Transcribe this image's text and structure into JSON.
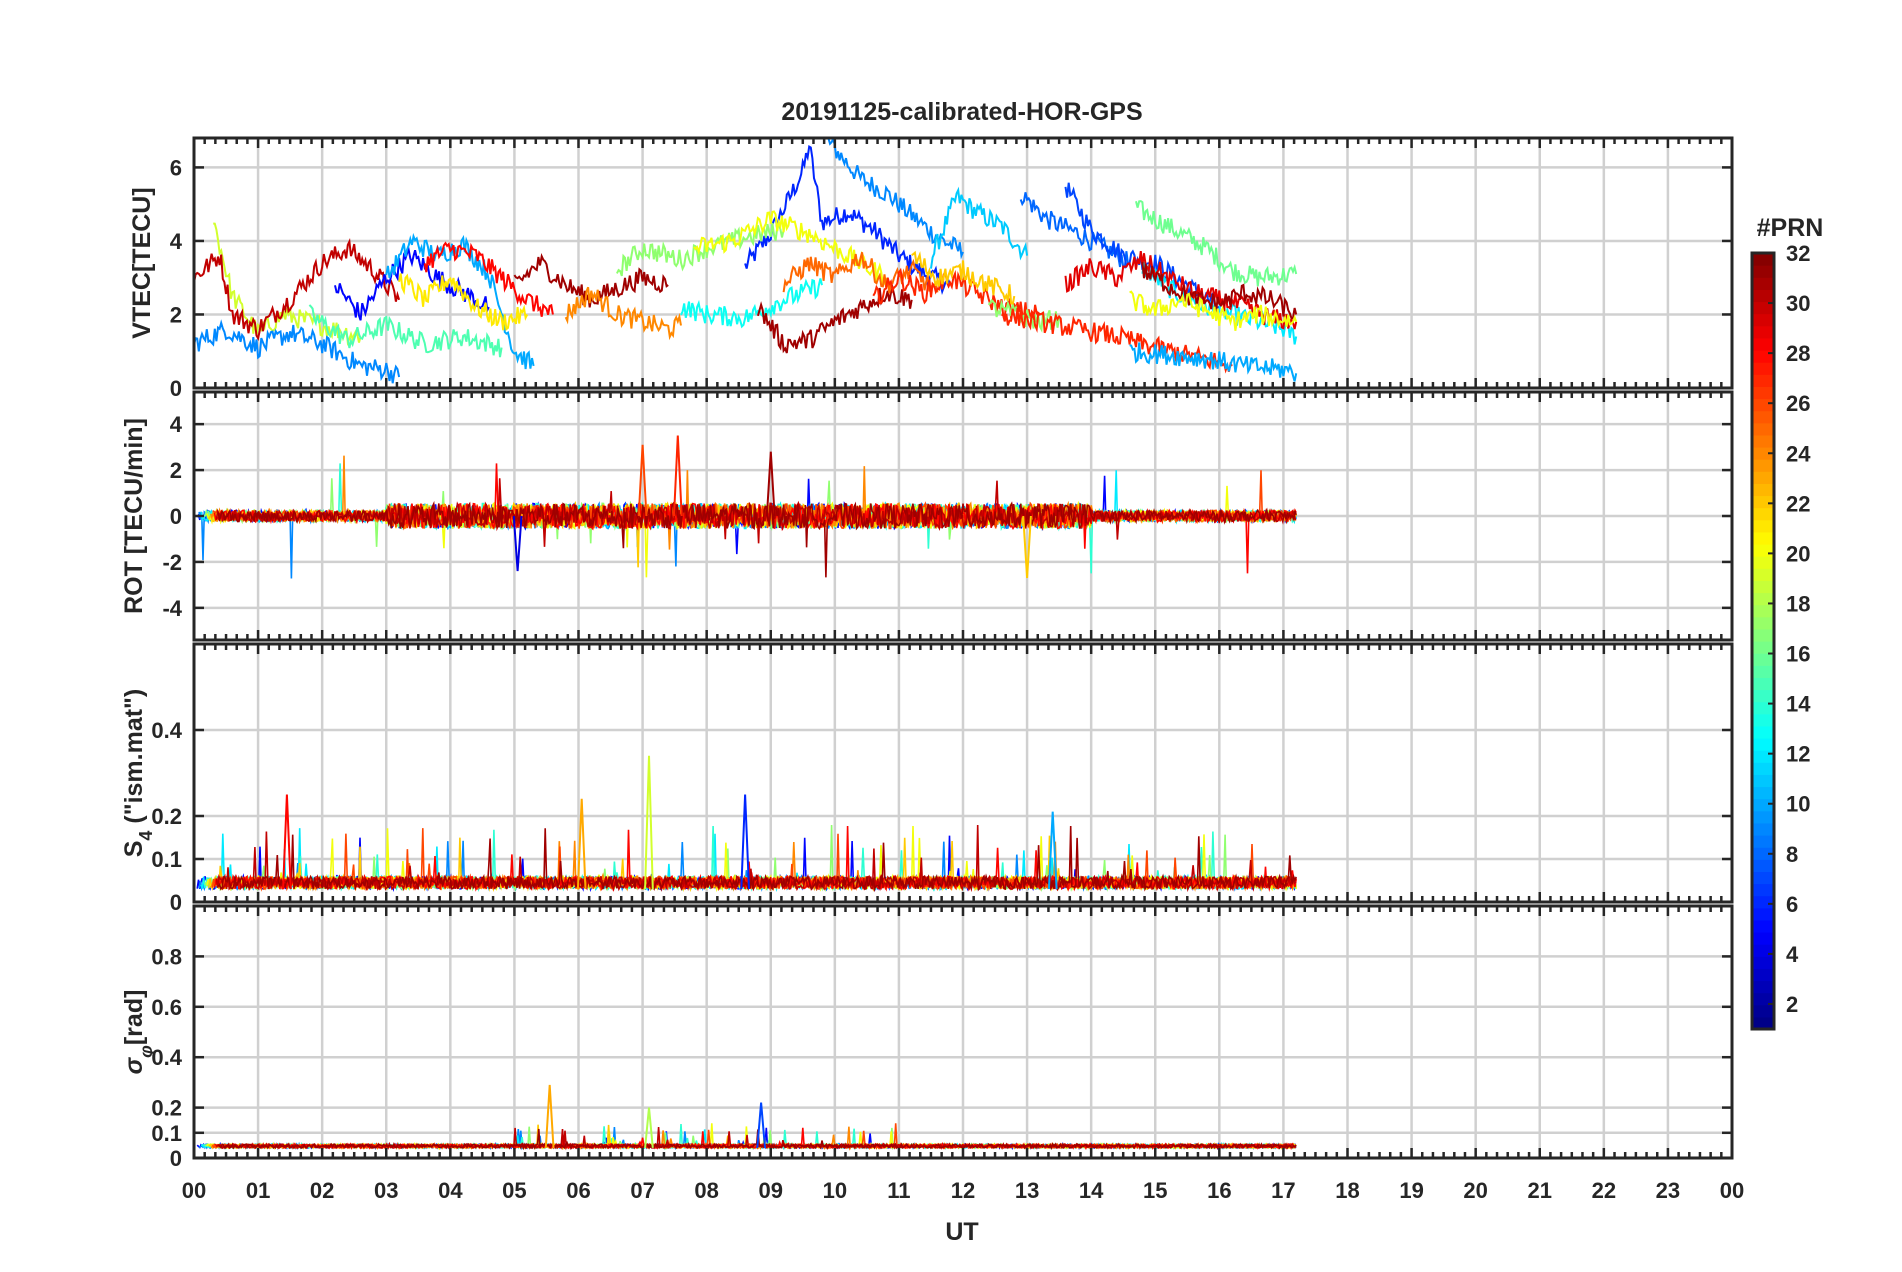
{
  "figure": {
    "title": "20191125-calibrated-HOR-GPS",
    "xlabel": "UT",
    "x_tick_labels": [
      "00",
      "01",
      "02",
      "03",
      "04",
      "05",
      "06",
      "07",
      "08",
      "09",
      "10",
      "11",
      "12",
      "13",
      "14",
      "15",
      "16",
      "17",
      "18",
      "19",
      "20",
      "21",
      "22",
      "23",
      "00"
    ]
  },
  "chart_data": [
    {
      "type": "line",
      "panel": "vtec",
      "ylabel": "VTEC[TECU]",
      "ylim": [
        0,
        6.8
      ],
      "yticks": [
        0,
        2,
        4,
        6
      ],
      "ytick_labels": [
        "0",
        "2",
        "4",
        "6"
      ],
      "xlim": [
        0,
        24
      ],
      "grid": true,
      "series": [
        {
          "prn": 6,
          "values": [
            [
              8.6,
              3.3
            ],
            [
              9.0,
              4.2
            ],
            [
              9.3,
              5.2
            ],
            [
              9.5,
              5.9
            ],
            [
              9.6,
              6.6
            ],
            [
              9.8,
              4.5
            ],
            [
              10.2,
              4.8
            ],
            [
              10.6,
              4.3
            ],
            [
              11.0,
              3.6
            ],
            [
              11.4,
              3.1
            ],
            [
              11.8,
              2.8
            ]
          ]
        },
        {
          "prn": 9,
          "values": [
            [
              9.9,
              6.7
            ],
            [
              10.4,
              5.7
            ],
            [
              10.8,
              5.3
            ],
            [
              11.2,
              4.7
            ],
            [
              11.6,
              4.1
            ],
            [
              12.0,
              3.7
            ]
          ]
        },
        {
          "prn": 11,
          "values": [
            [
              11.5,
              3.5
            ],
            [
              11.9,
              5.2
            ],
            [
              12.2,
              4.8
            ],
            [
              12.6,
              4.4
            ],
            [
              13.0,
              3.6
            ]
          ]
        },
        {
          "prn": 8,
          "values": [
            [
              12.9,
              5.3
            ],
            [
              13.3,
              4.6
            ],
            [
              13.8,
              4.2
            ],
            [
              14.2,
              3.8
            ],
            [
              14.6,
              3.4
            ]
          ]
        },
        {
          "prn": 7,
          "values": [
            [
              13.6,
              5.5
            ],
            [
              14.0,
              4.3
            ],
            [
              14.5,
              3.6
            ],
            [
              15.0,
              3.4
            ],
            [
              15.4,
              2.9
            ],
            [
              16.0,
              2.2
            ]
          ]
        },
        {
          "prn": 16,
          "values": [
            [
              14.7,
              4.9
            ],
            [
              15.0,
              4.6
            ],
            [
              15.4,
              4.2
            ],
            [
              15.8,
              3.8
            ],
            [
              16.2,
              3.2
            ],
            [
              16.6,
              3.0
            ],
            [
              17.2,
              3.1
            ]
          ]
        },
        {
          "prn": 12,
          "values": [
            [
              14.8,
              3.3
            ],
            [
              15.3,
              2.6
            ],
            [
              15.8,
              2.2
            ],
            [
              16.4,
              1.9
            ],
            [
              17.0,
              1.6
            ],
            [
              17.2,
              1.4
            ]
          ]
        },
        {
          "prn": 19,
          "values": [
            [
              0.3,
              4.6
            ],
            [
              0.6,
              2.5
            ],
            [
              1.0,
              1.5
            ],
            [
              1.4,
              2.0
            ],
            [
              2.0,
              1.7
            ],
            [
              2.6,
              1.4
            ]
          ]
        },
        {
          "prn": 30,
          "values": [
            [
              0.0,
              3.0
            ],
            [
              0.4,
              3.6
            ],
            [
              0.6,
              2.0
            ],
            [
              1.0,
              1.6
            ],
            [
              1.5,
              2.4
            ],
            [
              2.0,
              3.4
            ],
            [
              2.4,
              3.8
            ],
            [
              2.8,
              3.2
            ],
            [
              3.2,
              2.4
            ]
          ]
        },
        {
          "prn": 9,
          "values": [
            [
              0.0,
              1.2
            ],
            [
              0.5,
              1.6
            ],
            [
              1.0,
              1.1
            ],
            [
              1.5,
              1.5
            ],
            [
              2.0,
              1.2
            ],
            [
              2.6,
              0.6
            ],
            [
              3.0,
              0.5
            ],
            [
              3.2,
              0.3
            ]
          ]
        },
        {
          "prn": 5,
          "values": [
            [
              2.2,
              2.8
            ],
            [
              2.6,
              2.0
            ],
            [
              3.0,
              3.0
            ],
            [
              3.4,
              3.6
            ],
            [
              3.8,
              3.0
            ],
            [
              4.2,
              2.6
            ],
            [
              4.6,
              2.2
            ]
          ]
        },
        {
          "prn": 15,
          "values": [
            [
              1.8,
              2.0
            ],
            [
              2.4,
              1.3
            ],
            [
              3.0,
              1.7
            ],
            [
              3.6,
              1.2
            ],
            [
              4.2,
              1.4
            ],
            [
              4.8,
              1.1
            ]
          ]
        },
        {
          "prn": 10,
          "values": [
            [
              3.0,
              3.0
            ],
            [
              3.4,
              4.0
            ],
            [
              3.8,
              3.6
            ],
            [
              4.2,
              3.9
            ],
            [
              4.6,
              3.1
            ],
            [
              5.0,
              1.0
            ],
            [
              5.3,
              0.6
            ]
          ]
        },
        {
          "prn": 21,
          "values": [
            [
              3.2,
              3.0
            ],
            [
              3.6,
              2.4
            ],
            [
              4.0,
              3.0
            ],
            [
              4.4,
              2.2
            ],
            [
              4.8,
              1.8
            ],
            [
              5.2,
              2.0
            ]
          ]
        },
        {
          "prn": 28,
          "values": [
            [
              3.6,
              3.4
            ],
            [
              4.0,
              3.8
            ],
            [
              4.4,
              3.6
            ],
            [
              4.8,
              3.0
            ],
            [
              5.2,
              2.4
            ],
            [
              5.6,
              2.0
            ]
          ]
        },
        {
          "prn": 31,
          "values": [
            [
              5.0,
              2.8
            ],
            [
              5.4,
              3.4
            ],
            [
              5.8,
              2.8
            ],
            [
              6.2,
              2.4
            ],
            [
              6.6,
              2.7
            ],
            [
              7.0,
              3.0
            ],
            [
              7.4,
              2.8
            ]
          ]
        },
        {
          "prn": 24,
          "values": [
            [
              5.8,
              2.0
            ],
            [
              6.2,
              2.6
            ],
            [
              6.6,
              2.0
            ],
            [
              7.0,
              1.8
            ],
            [
              7.4,
              1.6
            ],
            [
              7.6,
              1.7
            ]
          ]
        },
        {
          "prn": 17,
          "values": [
            [
              6.6,
              3.2
            ],
            [
              7.0,
              3.8
            ],
            [
              7.6,
              3.5
            ],
            [
              8.0,
              3.8
            ],
            [
              8.6,
              4.1
            ],
            [
              9.2,
              4.3
            ]
          ]
        },
        {
          "prn": 13,
          "values": [
            [
              7.6,
              2.2
            ],
            [
              8.0,
              2.0
            ],
            [
              8.6,
              1.9
            ],
            [
              9.2,
              2.4
            ],
            [
              9.8,
              2.8
            ]
          ]
        },
        {
          "prn": 20,
          "values": [
            [
              7.8,
              3.8
            ],
            [
              8.4,
              4.0
            ],
            [
              9.0,
              4.6
            ],
            [
              9.6,
              4.2
            ],
            [
              10.2,
              3.6
            ],
            [
              10.8,
              3.0
            ]
          ]
        },
        {
          "prn": 31,
          "values": [
            [
              8.8,
              2.2
            ],
            [
              9.2,
              1.2
            ],
            [
              9.6,
              1.3
            ],
            [
              10.0,
              1.8
            ],
            [
              10.4,
              2.2
            ],
            [
              10.8,
              2.6
            ],
            [
              11.2,
              2.4
            ]
          ]
        },
        {
          "prn": 25,
          "values": [
            [
              9.2,
              2.8
            ],
            [
              9.6,
              3.4
            ],
            [
              10.0,
              3.0
            ],
            [
              10.4,
              3.6
            ],
            [
              10.8,
              2.8
            ],
            [
              11.2,
              3.2
            ],
            [
              11.6,
              2.6
            ]
          ]
        },
        {
          "prn": 27,
          "values": [
            [
              10.6,
              2.4
            ],
            [
              11.0,
              3.0
            ],
            [
              11.4,
              2.6
            ],
            [
              11.8,
              3.0
            ],
            [
              12.2,
              2.6
            ],
            [
              12.6,
              2.2
            ],
            [
              13.2,
              2.0
            ]
          ]
        },
        {
          "prn": 22,
          "values": [
            [
              11.2,
              3.6
            ],
            [
              11.6,
              3.0
            ],
            [
              12.0,
              3.2
            ],
            [
              12.4,
              2.8
            ],
            [
              12.8,
              2.5
            ]
          ]
        },
        {
          "prn": 17,
          "values": [
            [
              12.4,
              2.2
            ],
            [
              12.8,
              2.0
            ],
            [
              13.2,
              1.8
            ],
            [
              13.5,
              1.9
            ]
          ]
        },
        {
          "prn": 29,
          "values": [
            [
              13.6,
              2.8
            ],
            [
              14.0,
              3.3
            ],
            [
              14.4,
              3.0
            ],
            [
              14.8,
              3.5
            ],
            [
              15.2,
              3.0
            ],
            [
              15.6,
              2.6
            ],
            [
              16.0,
              2.4
            ],
            [
              16.4,
              2.2
            ],
            [
              16.8,
              1.9
            ],
            [
              17.2,
              1.8
            ]
          ]
        },
        {
          "prn": 31,
          "values": [
            [
              14.8,
              3.2
            ],
            [
              15.2,
              2.8
            ],
            [
              15.6,
              2.4
            ],
            [
              16.0,
              2.3
            ],
            [
              16.4,
              2.6
            ],
            [
              16.8,
              2.4
            ],
            [
              17.2,
              2.0
            ]
          ]
        },
        {
          "prn": 20,
          "values": [
            [
              14.6,
              2.4
            ],
            [
              15.0,
              2.1
            ],
            [
              15.4,
              2.4
            ],
            [
              15.8,
              2.1
            ],
            [
              16.2,
              1.8
            ],
            [
              16.6,
              2.0
            ],
            [
              17.2,
              1.8
            ]
          ]
        },
        {
          "prn": 27,
          "values": [
            [
              12.6,
              2.0
            ],
            [
              13.2,
              1.8
            ],
            [
              13.8,
              1.6
            ],
            [
              14.4,
              1.4
            ],
            [
              15.0,
              1.1
            ],
            [
              15.5,
              0.9
            ],
            [
              16.0,
              0.7
            ],
            [
              16.2,
              0.6
            ]
          ]
        },
        {
          "prn": 10,
          "values": [
            [
              14.6,
              1.0
            ],
            [
              15.2,
              0.9
            ],
            [
              15.8,
              0.8
            ],
            [
              16.4,
              0.6
            ],
            [
              17.0,
              0.5
            ],
            [
              17.2,
              0.4
            ]
          ]
        }
      ]
    },
    {
      "type": "line",
      "panel": "rot",
      "ylabel": "ROT [TECU/min]",
      "ylim": [
        -5.4,
        5.4
      ],
      "yticks": [
        -4,
        -2,
        0,
        2,
        4
      ],
      "ytick_labels": [
        "-4",
        "-2",
        "0",
        "2",
        "4"
      ],
      "xlim": [
        0,
        24
      ],
      "grid": true,
      "description_values": {
        "data_end_hour": 17.2,
        "baseline": 0,
        "peak_max": 3.5,
        "peak_min": -2.7
      }
    },
    {
      "type": "line",
      "panel": "s4",
      "ylabel_main": "S",
      "ylabel_sub": "4",
      "ylabel_rest": " (\"ism.mat\")",
      "ylim": [
        0,
        0.6
      ],
      "yticks": [
        0,
        0.1,
        0.2,
        0.4
      ],
      "ytick_labels": [
        "0",
        "0.1",
        "0.2",
        "0.4"
      ],
      "xlim": [
        0,
        24
      ],
      "grid": true,
      "description_values": {
        "data_end_hour": 17.2,
        "baseline": 0.03,
        "peak_max": 0.34
      }
    },
    {
      "type": "line",
      "panel": "sigma_phi",
      "ylabel_main": "σ",
      "ylabel_sub": "φ",
      "ylabel_rest": "[rad]",
      "ylim": [
        0,
        1.0
      ],
      "yticks": [
        0,
        0.1,
        0.2,
        0.4,
        0.6,
        0.8
      ],
      "ytick_labels": [
        "0",
        "0.1",
        "0.2",
        "0.4",
        "0.6",
        "0.8"
      ],
      "xlim": [
        0,
        24
      ],
      "grid": true,
      "description_values": {
        "data_end_hour": 17.2,
        "baseline": 0.04,
        "peak_max": 0.29
      }
    }
  ],
  "colorbar": {
    "label": "#PRN",
    "range": [
      1,
      32
    ],
    "tick_labels": [
      "2",
      "4",
      "6",
      "8",
      "10",
      "12",
      "14",
      "16",
      "18",
      "20",
      "22",
      "24",
      "26",
      "28",
      "30",
      "32"
    ],
    "colormap": "jet"
  }
}
